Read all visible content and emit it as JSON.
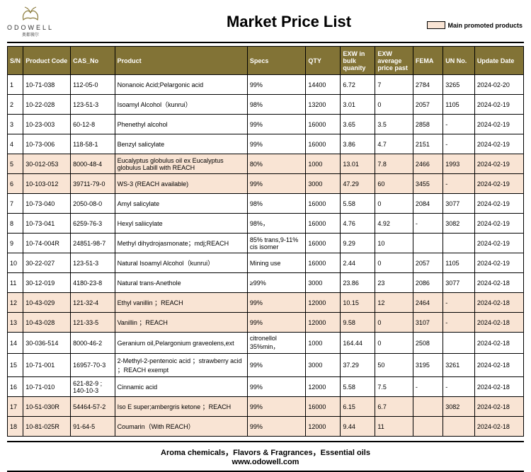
{
  "brand": {
    "name": "ODOWELL",
    "sub": "奥都薇尔"
  },
  "title": "Market Price List",
  "legend": "Main promoted products",
  "columns": [
    "S/N",
    "Product Code",
    "CAS_No",
    "Product",
    "Specs",
    "QTY",
    "EXW in bulk quanity",
    "EXW average price past",
    "FEMA",
    "UN No.",
    "Update Date"
  ],
  "rows": [
    {
      "p": false,
      "c": [
        "1",
        "10-71-038",
        "112-05-0",
        "Nonanoic Acid;Pelargonic acid",
        "99%",
        "14400",
        "6.72",
        "7",
        "2784",
        "3265",
        "2024-02-20"
      ]
    },
    {
      "p": false,
      "c": [
        "2",
        "10-22-028",
        "123-51-3",
        "Isoamyl Alcohol（kunrui）",
        "98%",
        "13200",
        "3.01",
        "0",
        "2057",
        "1105",
        "2024-02-19"
      ]
    },
    {
      "p": false,
      "c": [
        "3",
        "10-23-003",
        "60-12-8",
        "Phenethyl alcohol",
        "99%",
        "16000",
        "3.65",
        "3.5",
        "2858",
        "-",
        "2024-02-19"
      ]
    },
    {
      "p": false,
      "c": [
        "4",
        "10-73-006",
        "118-58-1",
        "Benzyl salicylate",
        "99%",
        "16000",
        "3.86",
        "4.7",
        "2151",
        "-",
        "2024-02-19"
      ]
    },
    {
      "p": true,
      "c": [
        "5",
        "30-012-053",
        "8000-48-4",
        "Eucalyptus globulus oil ex Eucalyptus globulus Labill with REACH",
        "80%",
        "1000",
        "13.01",
        "7.8",
        "2466",
        "1993",
        "2024-02-19"
      ]
    },
    {
      "p": true,
      "c": [
        "6",
        "10-103-012",
        "39711-79-0",
        "WS-3 (REACH available)",
        "99%",
        "3000",
        "47.29",
        "60",
        "3455",
        "-",
        "2024-02-19"
      ]
    },
    {
      "p": false,
      "c": [
        "7",
        "10-73-040",
        "2050-08-0",
        "Amyl salicylate",
        "98%",
        "16000",
        "5.58",
        "0",
        "2084",
        "3077",
        "2024-02-19"
      ]
    },
    {
      "p": false,
      "c": [
        "8",
        "10-73-041",
        "6259-76-3",
        "Hexyl saliicylate",
        "98%，",
        "16000",
        "4.76",
        "4.92",
        "-",
        "3082",
        "2024-02-19"
      ]
    },
    {
      "p": false,
      "c": [
        "9",
        "10-74-004R",
        "24851-98-7",
        "Methyl dihydrojasmonate；mdj;REACH",
        "85% trans,9-11% cis isomer",
        "16000",
        "9.29",
        "10",
        "",
        "",
        "2024-02-19"
      ]
    },
    {
      "p": false,
      "c": [
        "10",
        "30-22-027",
        "123-51-3",
        "Natural Isoamyl Alcohol（kunrui）",
        "Mining use",
        "16000",
        "2.44",
        "0",
        "2057",
        "1105",
        "2024-02-19"
      ]
    },
    {
      "p": false,
      "c": [
        "11",
        "30-12-019",
        "4180-23-8",
        "Natural trans-Anethole",
        "≥99%",
        "3000",
        "23.86",
        "23",
        "2086",
        "3077",
        "2024-02-18"
      ]
    },
    {
      "p": true,
      "c": [
        "12",
        "10-43-029",
        "121-32-4",
        "Ethyl vanillin ；REACH",
        "99%",
        "12000",
        "10.15",
        "12",
        "2464",
        "-",
        "2024-02-18"
      ]
    },
    {
      "p": true,
      "c": [
        "13",
        "10-43-028",
        "121-33-5",
        "Vanillin ；REACH",
        "99%",
        "12000",
        "9.58",
        "0",
        "3107",
        "-",
        "2024-02-18"
      ]
    },
    {
      "p": false,
      "c": [
        "14",
        "30-036-514",
        "8000-46-2",
        "Geranium oil,Pelargonium graveolens,ext",
        "citronellol 35%min，",
        "1000",
        "164.44",
        "0",
        "2508",
        "",
        "2024-02-18"
      ]
    },
    {
      "p": false,
      "c": [
        "15",
        "10-71-001",
        "16957-70-3",
        "2-Methyl-2-pentenoic acid ；strawberry acid ；REACH exempt",
        "99%",
        "3000",
        "37.29",
        "50",
        "3195",
        "3261",
        "2024-02-18"
      ]
    },
    {
      "p": false,
      "c": [
        "16",
        "10-71-010",
        "621-82-9 ; 140-10-3",
        "Cinnamic acid",
        "99%",
        "12000",
        "5.58",
        "7.5",
        "-",
        "-",
        "2024-02-18"
      ]
    },
    {
      "p": true,
      "c": [
        "17",
        "10-51-030R",
        "54464-57-2",
        "Iso E super;ambergris ketone ；REACH",
        "99%",
        "16000",
        "6.15",
        "6.7",
        "",
        "3082",
        "2024-02-18"
      ]
    },
    {
      "p": true,
      "c": [
        "18",
        "10-81-025R",
        "91-64-5",
        "Coumarin（With REACH）",
        "99%",
        "12000",
        "9.44",
        "11",
        "",
        "",
        "2024-02-18"
      ]
    }
  ],
  "footer": {
    "line1": "Aroma chemicals，Flavors & Fragrances，Essential oils",
    "line2": "www.odowell.com"
  },
  "colors": {
    "header_bg": "#827336",
    "promoted_bg": "#f9e4d4",
    "border": "#000000"
  }
}
